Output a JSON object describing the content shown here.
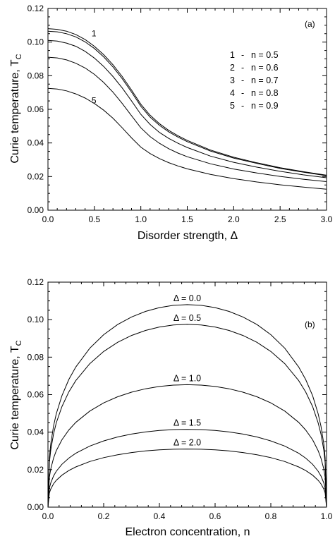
{
  "chart_data": [
    {
      "type": "line",
      "panel_label": "(a)",
      "xlabel": "Disorder strength, Δ",
      "ylabel": "Curie temperature, T",
      "ylabel_sub": "C",
      "xlim": [
        0,
        3.0
      ],
      "ylim": [
        0,
        0.12
      ],
      "xticks": [
        "0.0",
        "0.5",
        "1.0",
        "1.5",
        "2.0",
        "2.5",
        "3.0"
      ],
      "yticks": [
        "0.00",
        "0.02",
        "0.04",
        "0.06",
        "0.08",
        "0.10",
        "0.12"
      ],
      "legend_position": "top-right",
      "legend": [
        {
          "num": "1",
          "label": "n = 0.5"
        },
        {
          "num": "2",
          "label": "n = 0.6"
        },
        {
          "num": "3",
          "label": "n = 0.7"
        },
        {
          "num": "4",
          "label": "n = 0.8"
        },
        {
          "num": "5",
          "label": "n = 0.9"
        }
      ],
      "curve_labels": [
        {
          "text": "1",
          "x": 0.47,
          "y": 0.1035
        },
        {
          "text": "5",
          "x": 0.47,
          "y": 0.0635
        }
      ],
      "x": [
        0.0,
        0.1,
        0.2,
        0.3,
        0.4,
        0.5,
        0.6,
        0.7,
        0.8,
        0.9,
        1.0,
        1.1,
        1.2,
        1.3,
        1.4,
        1.5,
        1.75,
        2.0,
        2.25,
        2.5,
        2.75,
        3.0
      ],
      "series": [
        {
          "name": "1",
          "values": [
            0.108,
            0.1076,
            0.1065,
            0.1045,
            0.1015,
            0.0975,
            0.0925,
            0.0865,
            0.0795,
            0.0715,
            0.063,
            0.0565,
            0.0515,
            0.0475,
            0.0443,
            0.0415,
            0.0358,
            0.0315,
            0.0282,
            0.0253,
            0.0229,
            0.0208
          ]
        },
        {
          "name": "2",
          "values": [
            0.1065,
            0.1061,
            0.105,
            0.1031,
            0.1001,
            0.0962,
            0.0912,
            0.0852,
            0.0782,
            0.0703,
            0.0618,
            0.0554,
            0.0505,
            0.0466,
            0.0435,
            0.0408,
            0.0352,
            0.031,
            0.0278,
            0.0249,
            0.0226,
            0.0205
          ]
        },
        {
          "name": "3",
          "values": [
            0.101,
            0.1006,
            0.0994,
            0.0975,
            0.0945,
            0.0905,
            0.0855,
            0.0795,
            0.0727,
            0.065,
            0.057,
            0.051,
            0.0463,
            0.0427,
            0.0398,
            0.0373,
            0.0322,
            0.0285,
            0.0256,
            0.0231,
            0.021,
            0.0193
          ]
        },
        {
          "name": "4",
          "values": [
            0.091,
            0.0906,
            0.0894,
            0.0874,
            0.0846,
            0.0808,
            0.076,
            0.0702,
            0.0635,
            0.0562,
            0.049,
            0.0438,
            0.0398,
            0.0366,
            0.034,
            0.0318,
            0.0276,
            0.0245,
            0.0221,
            0.0201,
            0.0184,
            0.017
          ]
        },
        {
          "name": "5",
          "values": [
            0.0725,
            0.0721,
            0.071,
            0.0692,
            0.0667,
            0.0635,
            0.0595,
            0.0547,
            0.049,
            0.043,
            0.0375,
            0.0337,
            0.0307,
            0.0283,
            0.0263,
            0.0246,
            0.0213,
            0.0188,
            0.0168,
            0.0151,
            0.0137,
            0.0125
          ]
        }
      ]
    },
    {
      "type": "line",
      "panel_label": "(b)",
      "xlabel": "Electron concentration, n",
      "ylabel": "Curie temperature, T",
      "ylabel_sub": "C",
      "xlim": [
        0,
        1.0
      ],
      "ylim": [
        0,
        0.12
      ],
      "xticks": [
        "0.0",
        "0.2",
        "0.4",
        "0.6",
        "0.8",
        "1.0"
      ],
      "yticks": [
        "0.00",
        "0.02",
        "0.04",
        "0.06",
        "0.08",
        "0.10",
        "0.12"
      ],
      "x": [
        0.0,
        0.005,
        0.01,
        0.02,
        0.03,
        0.05,
        0.075,
        0.1,
        0.15,
        0.2,
        0.25,
        0.3,
        0.35,
        0.4,
        0.45,
        0.5,
        0.55,
        0.6,
        0.65,
        0.7,
        0.75,
        0.8,
        0.85,
        0.9,
        0.925,
        0.95,
        0.97,
        0.98,
        0.99,
        0.995,
        1.0
      ],
      "series": [
        {
          "name": "Δ = 0.0",
          "peak": 0.108
        },
        {
          "name": "Δ = 0.5",
          "peak": 0.0975
        },
        {
          "name": "Δ = 1.0",
          "peak": 0.0653
        },
        {
          "name": "Δ = 1.5",
          "peak": 0.0415
        },
        {
          "name": "Δ = 2.0",
          "peak": 0.031
        }
      ]
    }
  ]
}
